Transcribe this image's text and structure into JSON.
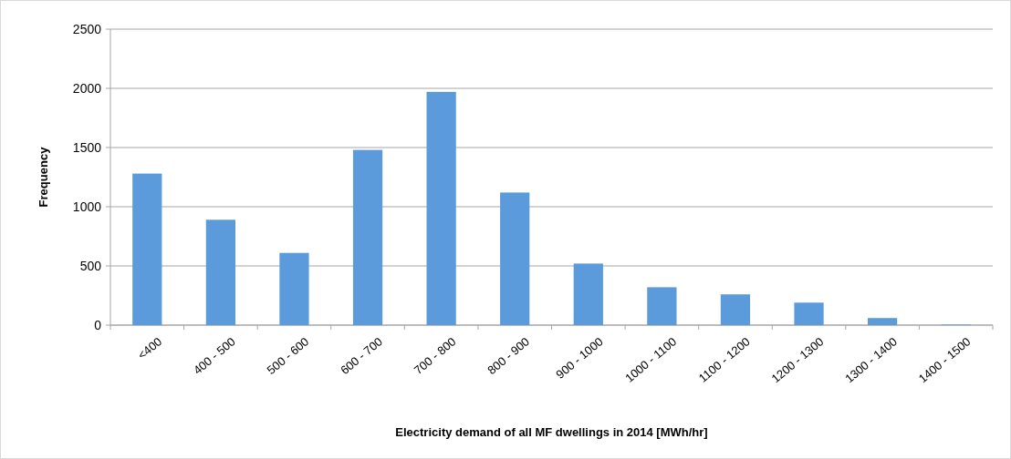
{
  "chart_data": {
    "type": "bar",
    "xlabel": "Electricity demand of all MF dwellings in 2014 [MWh/hr]",
    "ylabel": "Frequency",
    "categories": [
      "<400",
      "400 - 500",
      "500 - 600",
      "600 - 700",
      "700 - 800",
      "800 - 900",
      "900 - 1000",
      "1000 - 1100",
      "1100 - 1200",
      "1200 - 1300",
      "1300 - 1400",
      "1400 - 1500"
    ],
    "values": [
      1280,
      890,
      610,
      1480,
      1970,
      1120,
      520,
      320,
      260,
      190,
      60,
      5
    ],
    "color": "#5b9bdc",
    "ylim": [
      0,
      2500
    ],
    "yticks": [
      0,
      500,
      1000,
      1500,
      2000,
      2500
    ],
    "grid": "y"
  }
}
